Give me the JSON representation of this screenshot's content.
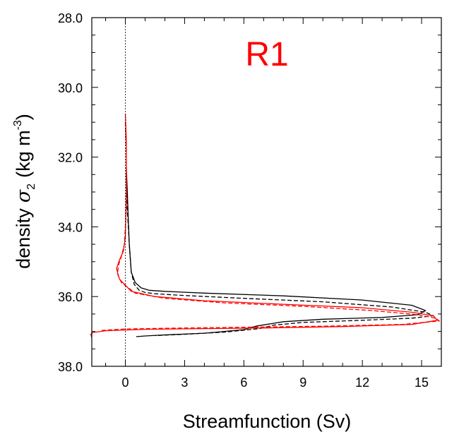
{
  "chart_data": {
    "type": "line",
    "annotation": "R1",
    "annotation_color": "#ff0000",
    "xlabel": "Streamfunction (Sv)",
    "ylabel_prefix": "density",
    "ylabel_symbol": "σ",
    "ylabel_subscript": "2",
    "ylabel_units": "(kg m",
    "ylabel_units_exp": "-3",
    "ylabel_units_close": ")",
    "xlim": [
      -1.7,
      16.0
    ],
    "ylim": [
      38.0,
      28.0
    ],
    "y_reversed": true,
    "x_ticks": [
      0,
      3,
      6,
      9,
      12,
      15
    ],
    "x_tick_labels": [
      "0",
      "3",
      "6",
      "9",
      "12",
      "15"
    ],
    "y_ticks": [
      28,
      30,
      32,
      34,
      36,
      38
    ],
    "y_tick_labels": [
      "28.0",
      "30.0",
      "32.0",
      "34.0",
      "36.0",
      "38.0"
    ],
    "zero_line": true,
    "grid": false,
    "series": [
      {
        "color": "#000000",
        "dash": "solid",
        "x": [
          0.05,
          0.1,
          0.15,
          0.2,
          0.3,
          0.5,
          0.8,
          1.2,
          2.0,
          4.0,
          8.0,
          12.0,
          14.5,
          15.2,
          14.8,
          13.0,
          10.0,
          8.0,
          6.6,
          6.0,
          4.0,
          2.0,
          1.0,
          0.55
        ],
        "y": [
          32.3,
          33.0,
          33.8,
          34.5,
          35.3,
          35.6,
          35.75,
          35.82,
          35.85,
          35.9,
          35.98,
          36.1,
          36.25,
          36.4,
          36.52,
          36.6,
          36.65,
          36.72,
          36.85,
          36.95,
          37.05,
          37.1,
          37.13,
          37.15
        ]
      },
      {
        "color": "#000000",
        "dash": "dashed",
        "x": [
          0.05,
          0.1,
          0.2,
          0.3,
          0.45,
          0.7,
          1.0,
          1.5,
          3.0,
          6.0,
          10.0,
          13.5,
          15.2,
          15.6,
          14.5,
          12.0,
          9.0,
          7.5,
          6.8,
          5.0,
          3.0,
          1.5
        ],
        "y": [
          32.5,
          33.5,
          34.5,
          35.3,
          35.65,
          35.82,
          35.88,
          35.92,
          35.97,
          36.05,
          36.15,
          36.3,
          36.45,
          36.55,
          36.62,
          36.68,
          36.74,
          36.82,
          36.92,
          37.02,
          37.08,
          37.12
        ]
      },
      {
        "color": "#ff0000",
        "dash": "solid",
        "x": [
          0.0,
          0.05,
          0.05,
          0.0,
          -0.1,
          -0.3,
          -0.45,
          -0.3,
          0.3,
          1.5,
          4.0,
          8.0,
          12.0,
          14.5,
          15.6,
          15.8,
          14.5,
          11.0,
          7.0,
          4.0,
          1.0,
          -1.0,
          -1.65,
          -1.75,
          -1.7
        ],
        "y": [
          30.75,
          31.5,
          33.0,
          34.3,
          34.7,
          34.95,
          35.2,
          35.5,
          35.85,
          36.0,
          36.12,
          36.22,
          36.32,
          36.45,
          36.55,
          36.68,
          36.8,
          36.86,
          36.9,
          36.92,
          36.94,
          36.98,
          37.03,
          37.08,
          37.18
        ]
      },
      {
        "color": "#ff0000",
        "dash": "dashed",
        "x": [
          0.0,
          0.05,
          0.05,
          -0.05,
          -0.2,
          -0.35,
          -0.4,
          -0.2,
          0.5,
          2.0,
          5.0,
          9.0,
          12.5,
          14.8,
          15.7,
          15.9,
          14.0,
          10.0,
          6.0,
          3.0,
          0.0,
          -1.2
        ],
        "y": [
          31.0,
          32.0,
          33.5,
          34.5,
          34.85,
          35.1,
          35.35,
          35.6,
          35.9,
          36.05,
          36.18,
          36.28,
          36.4,
          36.52,
          36.62,
          36.7,
          36.8,
          36.85,
          36.88,
          36.9,
          36.93,
          36.97
        ]
      }
    ]
  }
}
